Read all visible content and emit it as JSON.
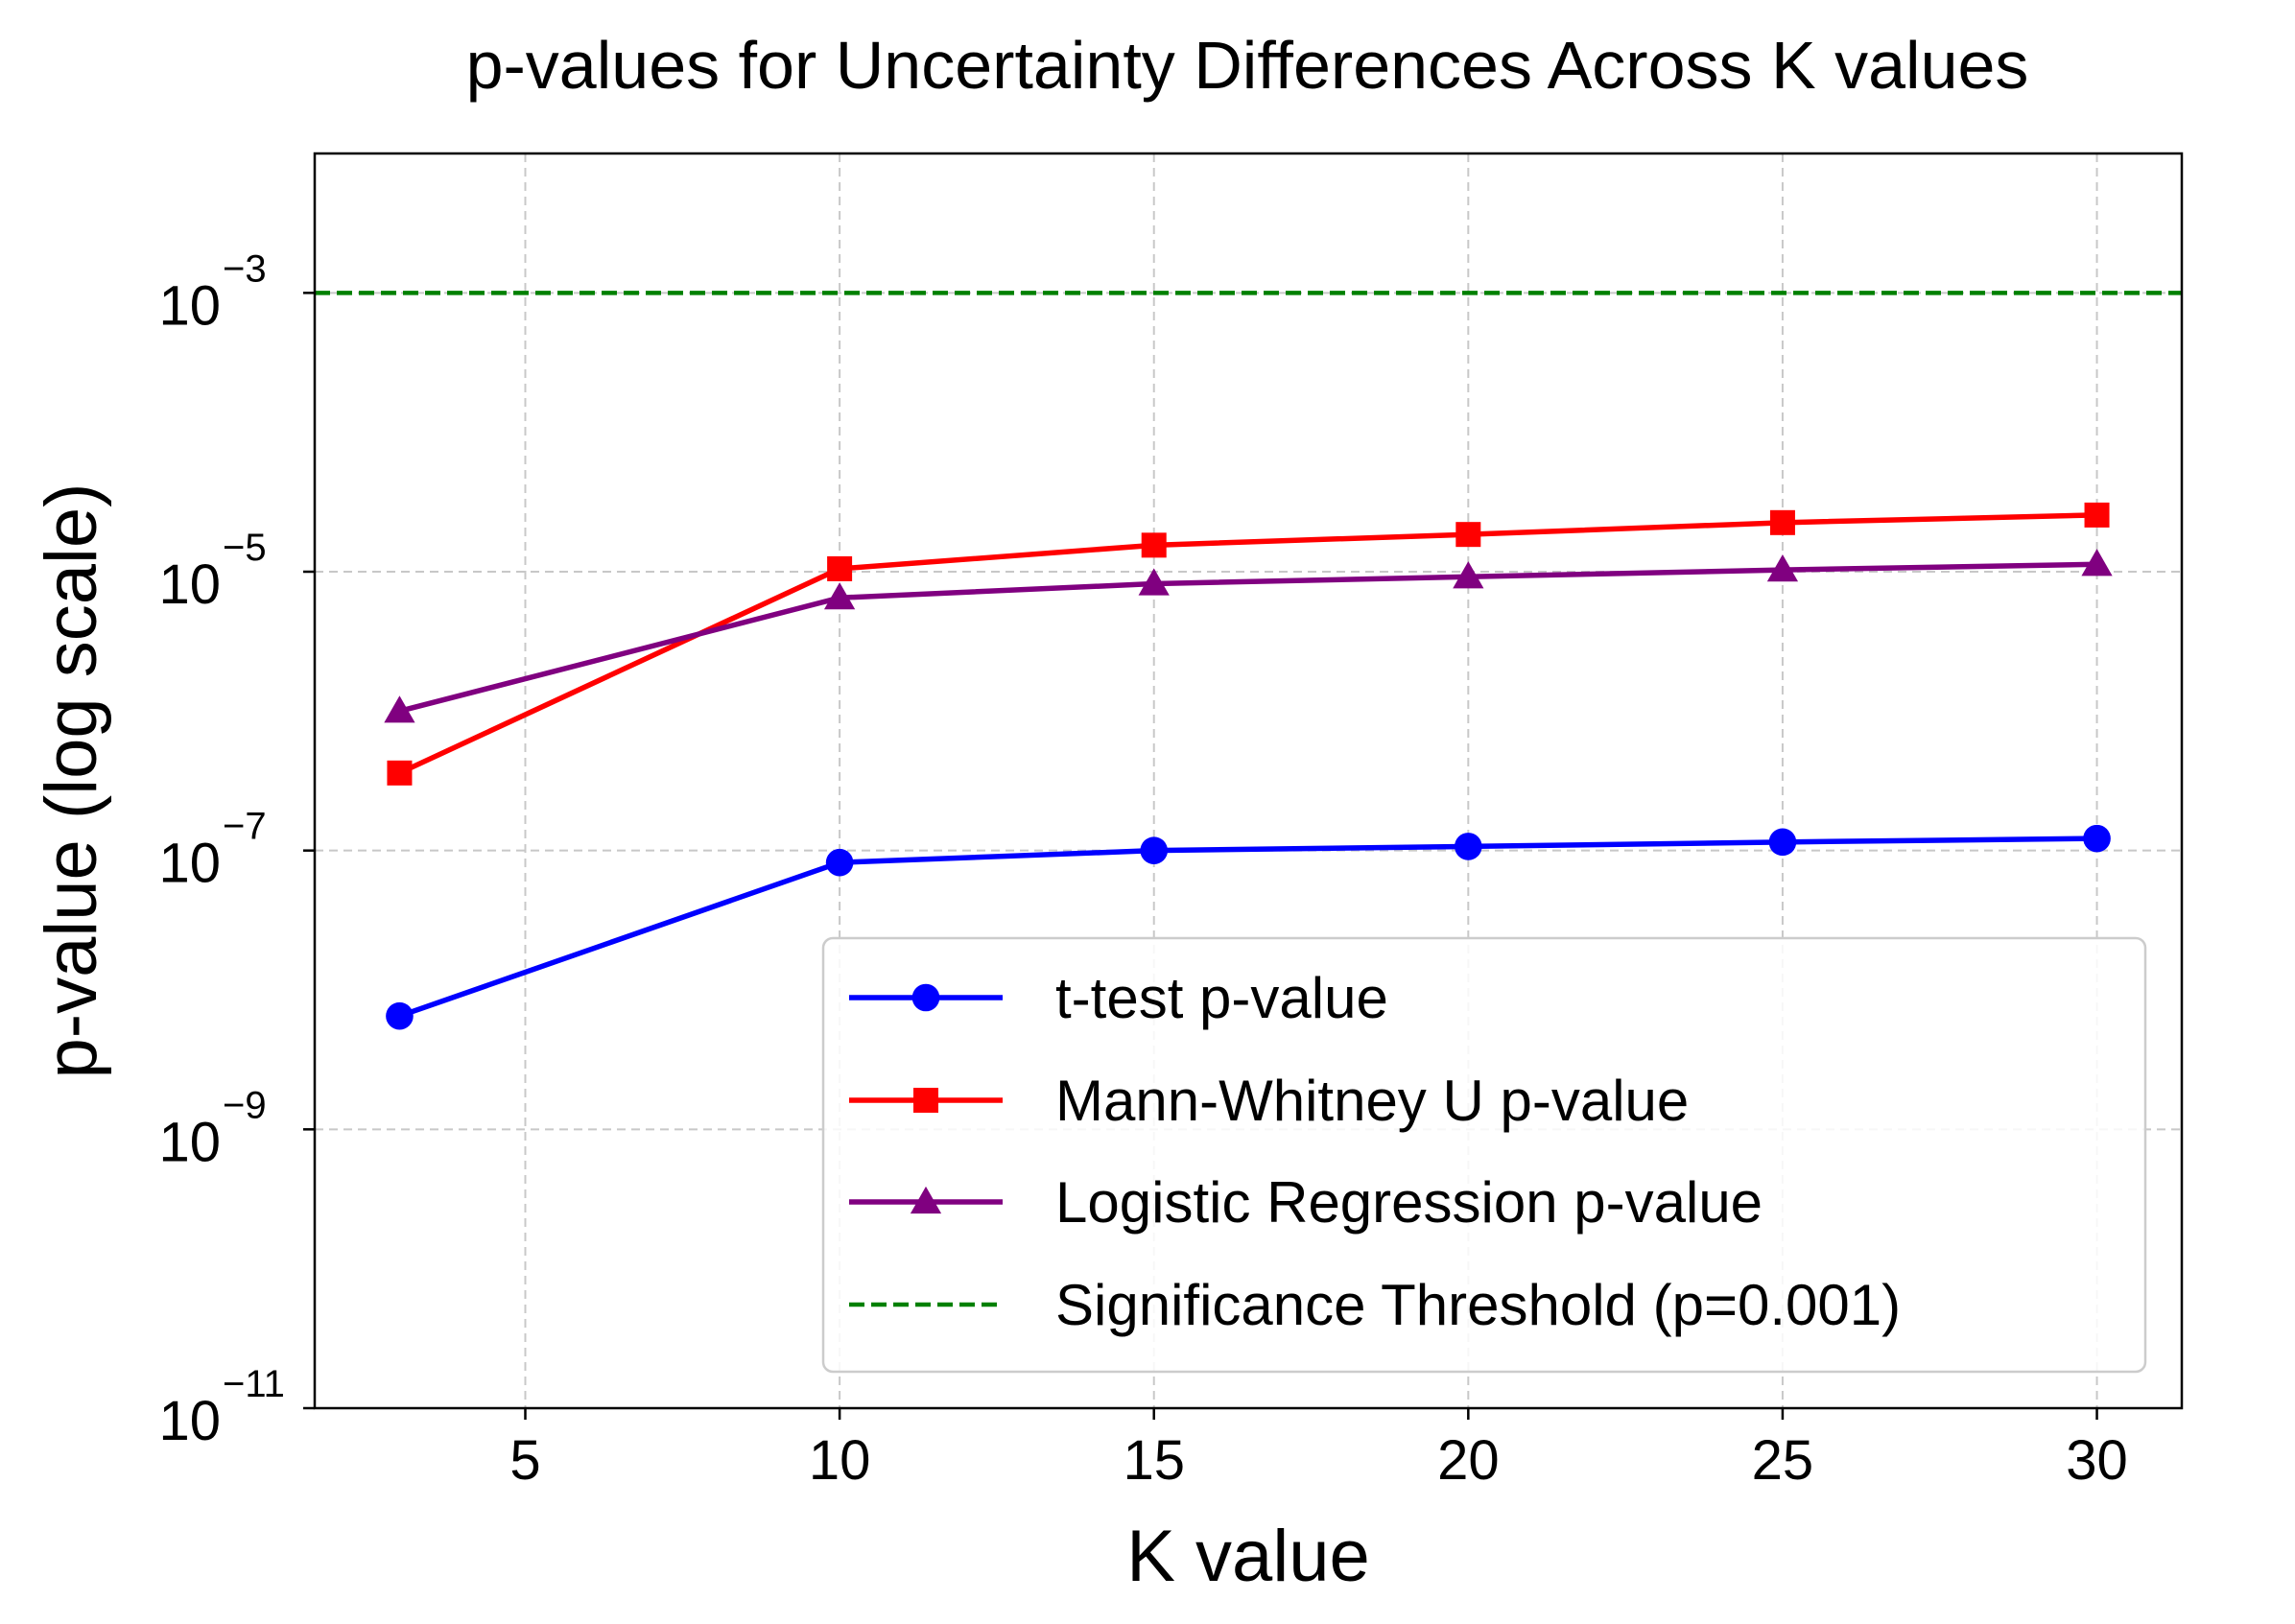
{
  "chart_data": {
    "type": "line",
    "title": "p-values for Uncertainty Differences Across K values",
    "xlabel": "K value",
    "ylabel": "p-value (log scale)",
    "yscale": "log",
    "xlim": [
      1.65,
      31.35
    ],
    "ylim_exp": [
      -11,
      -2
    ],
    "x_ticks": [
      5,
      10,
      15,
      20,
      25,
      30
    ],
    "y_ticks": [
      {
        "exp": -11,
        "base": "10",
        "sup": "−11"
      },
      {
        "exp": -9,
        "base": "10",
        "sup": "−9"
      },
      {
        "exp": -7,
        "base": "10",
        "sup": "−7"
      },
      {
        "exp": -5,
        "base": "10",
        "sup": "−5"
      },
      {
        "exp": -3,
        "base": "10",
        "sup": "−3"
      }
    ],
    "grid": true,
    "x": [
      3,
      10,
      15,
      20,
      25,
      30
    ],
    "series": [
      {
        "name": "t-test p-value",
        "color": "#0000ff",
        "marker": "circle",
        "values": [
          6.5e-09,
          8.2e-08,
          1e-07,
          1.07e-07,
          1.15e-07,
          1.22e-07
        ]
      },
      {
        "name": "Mann-Whitney U p-value",
        "color": "#ff0000",
        "marker": "square",
        "values": [
          3.6e-07,
          1.05e-05,
          1.55e-05,
          1.85e-05,
          2.25e-05,
          2.55e-05
        ]
      },
      {
        "name": "Logistic Regression p-value",
        "color": "#800080",
        "marker": "triangle",
        "values": [
          1e-06,
          6.5e-06,
          8.2e-06,
          9.2e-06,
          1.03e-05,
          1.13e-05
        ]
      }
    ],
    "threshold": {
      "name": "Significance Threshold (p=0.001)",
      "value": 0.001,
      "color": "#008000"
    },
    "legend_position": "lower-right"
  }
}
